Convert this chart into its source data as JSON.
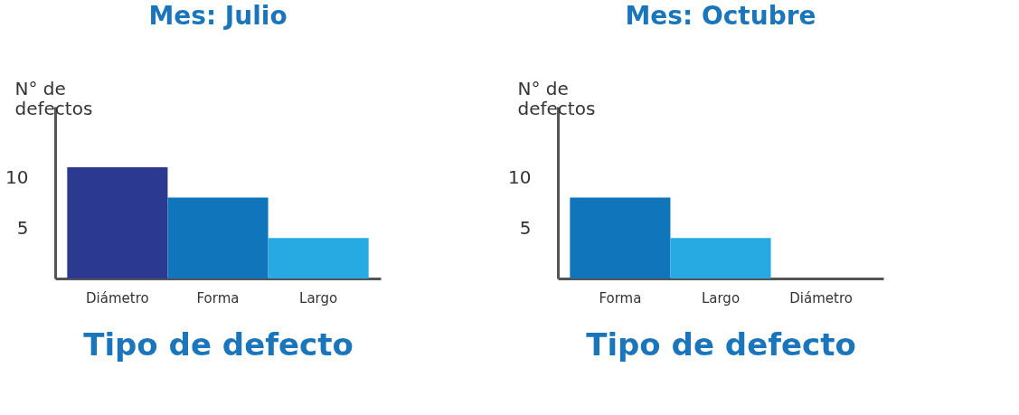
{
  "chart_data": [
    {
      "type": "bar",
      "title": "Mes: Julio",
      "xlabel": "Tipo de defecto",
      "ylabel": "N° de defectos",
      "categories": [
        "Diámetro",
        "Forma",
        "Largo"
      ],
      "values": [
        11,
        8,
        4
      ],
      "colors": [
        "#2b3990",
        "#1175bb",
        "#27aae1"
      ],
      "ylim": [
        0,
        17
      ],
      "yticks": [
        5,
        10
      ],
      "grid": false
    },
    {
      "type": "bar",
      "title": "Mes: Octubre",
      "xlabel": "Tipo de defecto",
      "ylabel": "N° de defectos",
      "categories": [
        "Forma",
        "Largo",
        "Diámetro"
      ],
      "values": [
        8,
        4,
        0
      ],
      "colors": [
        "#1175bb",
        "#27aae1",
        "#2b3990"
      ],
      "ylim": [
        0,
        17
      ],
      "yticks": [
        5,
        10
      ],
      "grid": false
    }
  ]
}
